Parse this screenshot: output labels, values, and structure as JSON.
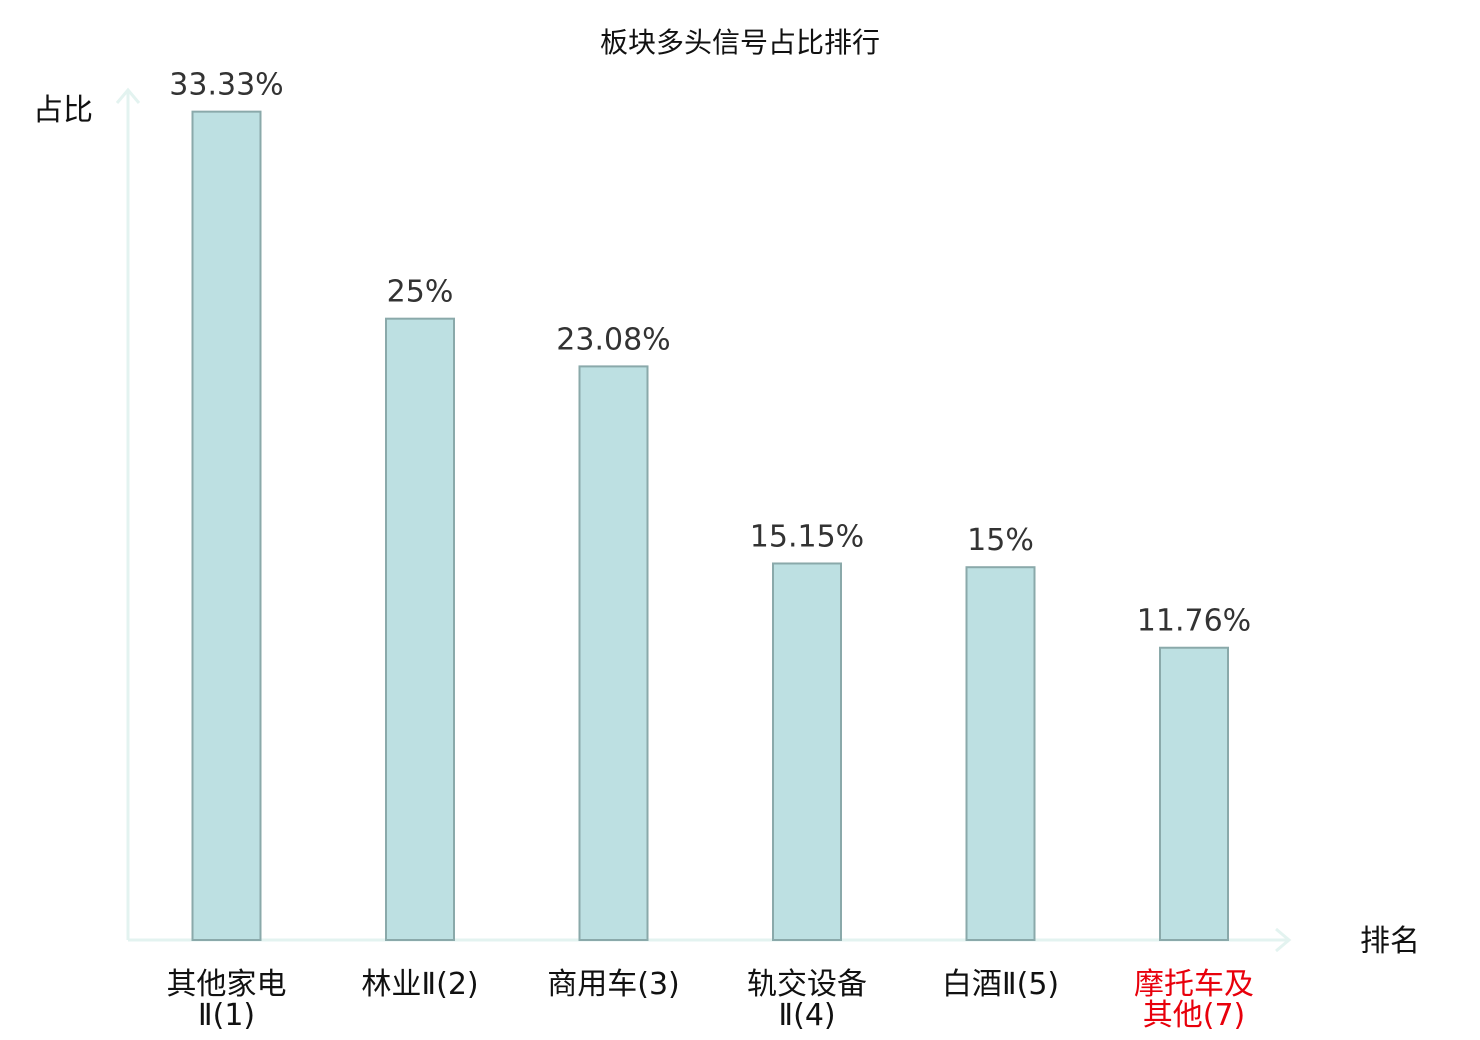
{
  "chart_data": {
    "type": "bar",
    "title": "板块多头信号占比排行",
    "ylabel": "占比",
    "xlabel": "排名",
    "ylim": [
      0,
      34
    ],
    "categories": [
      [
        "其他家电",
        "Ⅱ(1)"
      ],
      [
        "林业Ⅱ(2)"
      ],
      [
        "商用车(3)"
      ],
      [
        "轨交设备",
        "Ⅱ(4)"
      ],
      [
        "白酒Ⅱ(5)"
      ],
      [
        "摩托车及",
        "其他(7)"
      ]
    ],
    "values": [
      33.33,
      25,
      23.08,
      15.15,
      15,
      11.76
    ],
    "data_labels": [
      "33.33%",
      "25%",
      "23.08%",
      "15.15%",
      "15%",
      "11.76%"
    ],
    "highlight_index": 5,
    "grid": false,
    "colors": {
      "bar_fill": "#bde0e2",
      "bar_stroke": "#8aa9aa",
      "axis": "#e3f3f0",
      "label": "#111111",
      "highlight": "#e8000b"
    }
  }
}
